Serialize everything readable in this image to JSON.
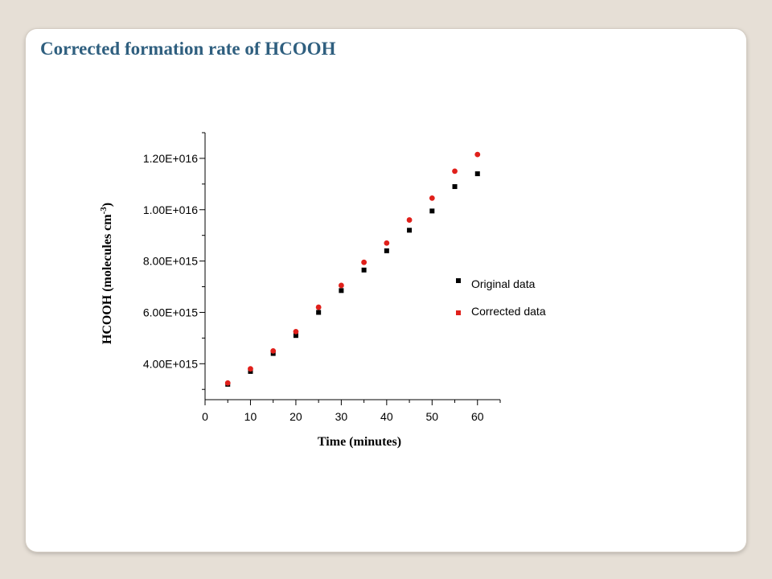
{
  "slide": {
    "title": "Corrected formation rate of HCOOH"
  },
  "chart_data": {
    "type": "scatter",
    "title": "",
    "xlabel": "Time (minutes)",
    "ylabel": "HCOOH (molecules cm",
    "ylabel_sup": "-3",
    "ylabel_close": ")",
    "xlim": [
      0,
      65
    ],
    "ylim": [
      2600000000000000.0,
      1.3e+16
    ],
    "x_ticks": [
      0,
      10,
      20,
      30,
      40,
      50,
      60
    ],
    "x_tick_labels": [
      "0",
      "10",
      "20",
      "30",
      "40",
      "50",
      "60"
    ],
    "y_ticks": [
      4000000000000000.0,
      6000000000000000.0,
      8000000000000000.0,
      1e+16,
      1.2e+16
    ],
    "y_tick_labels": [
      "4.00E+015",
      "6.00E+015",
      "8.00E+015",
      "1.00E+016",
      "1.20E+016"
    ],
    "grid": false,
    "legend_position": "right",
    "series": [
      {
        "name": "Original data",
        "color": "#000000",
        "marker": "square",
        "x": [
          5,
          10,
          15,
          20,
          25,
          30,
          35,
          40,
          45,
          50,
          55,
          60
        ],
        "y": [
          3200000000000000.0,
          3700000000000000.0,
          4400000000000000.0,
          5100000000000000.0,
          6000000000000000.0,
          6850000000000000.0,
          7650000000000000.0,
          8400000000000000.0,
          9200000000000000.0,
          9950000000000000.0,
          1.09e+16,
          1.14e+16
        ]
      },
      {
        "name": "Corrected data",
        "color": "#e0201b",
        "marker": "circle",
        "x": [
          5,
          10,
          15,
          20,
          25,
          30,
          35,
          40,
          45,
          50,
          55,
          60
        ],
        "y": [
          3250000000000000.0,
          3800000000000000.0,
          4500000000000000.0,
          5250000000000000.0,
          6200000000000000.0,
          7050000000000000.0,
          7950000000000000.0,
          8700000000000000.0,
          9600000000000000.0,
          1.045e+16,
          1.15e+16,
          1.215e+16
        ]
      }
    ]
  }
}
